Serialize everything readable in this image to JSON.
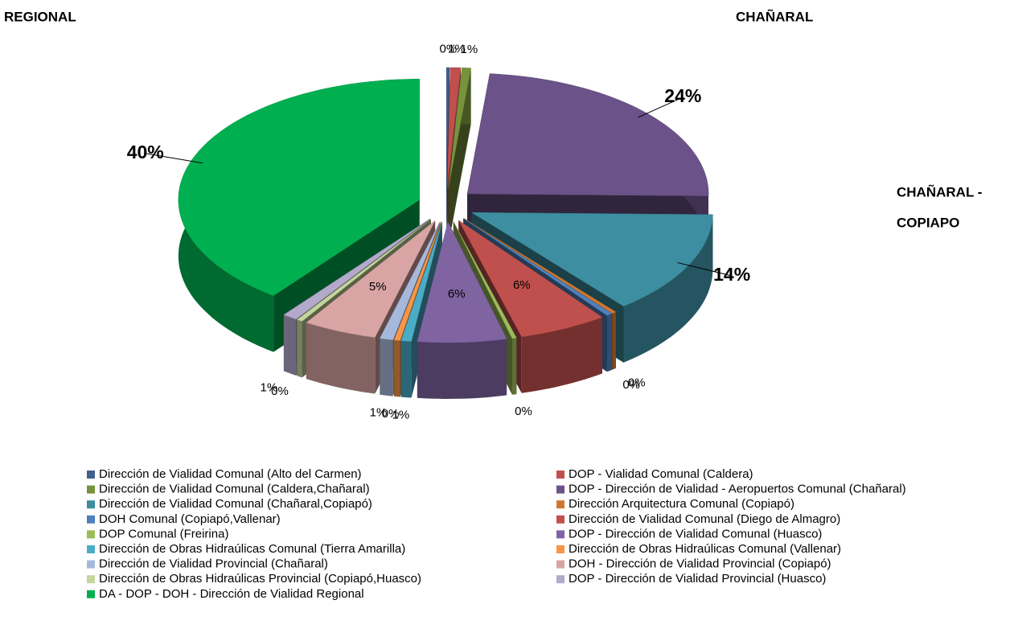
{
  "chart_data": {
    "type": "pie",
    "annotations": [
      "REGIONAL",
      "CHAÑARAL",
      "CHAÑARAL -",
      "COPIAPO"
    ],
    "categories": [
      "Dirección de Vialidad Comunal (Alto del Carmen)",
      "DOP - Vialidad Comunal (Caldera)",
      "Dirección de Vialidad Comunal (Caldera,Chañaral)",
      "DOP - Dirección de Vialidad - Aeropuertos Comunal (Chañaral)",
      "Dirección de Vialidad Comunal (Chañaral,Copiapó)",
      "Dirección Arquitectura Comunal (Copiapó)",
      "DOH Comunal (Copiapó,Vallenar)",
      "Dirección de Vialidad Comunal (Diego de Almagro)",
      "DOP Comunal (Freirina)",
      "DOP - Dirección de Vialidad Comunal (Huasco)",
      "Dirección de Obras Hidraúlicas Comunal (Tierra Amarilla)",
      "Dirección de Obras Hidraúlicas Comunal (Vallenar)",
      "Dirección de Vialidad Provincial (Chañaral)",
      "DOH - Dirección de Vialidad Provincial (Copiapó)",
      "Dirección de Obras Hidraúlicas Provincial (Copiapó,Huasco)",
      "DOP - Dirección de Vialidad Provincial (Huasco)",
      "DA - DOP - DOH - Dirección de Vialidad Regional"
    ],
    "values": [
      0.2,
      0.7,
      0.6,
      24,
      14,
      0.3,
      0.4,
      6,
      0.3,
      6,
      0.7,
      0.4,
      0.9,
      5,
      0.4,
      1,
      40
    ],
    "value_labels": [
      "0%",
      "1%",
      "1%",
      "24%",
      "14%",
      "0%",
      "0%",
      "6%",
      "0%",
      "6%",
      "1%",
      "0%",
      "1%",
      "5%",
      "0%",
      "1%",
      "40%"
    ],
    "colors": [
      "#3F5F8F",
      "#C0504D",
      "#77933C",
      "#6B5288",
      "#3D8EA0",
      "#D0782F",
      "#4F81BD",
      "#C0504D",
      "#9BBB59",
      "#8064A2",
      "#4BACC6",
      "#F79646",
      "#A6B9DB",
      "#D9A5A4",
      "#C3D69B",
      "#B3A9CB",
      "#00B050"
    ]
  }
}
